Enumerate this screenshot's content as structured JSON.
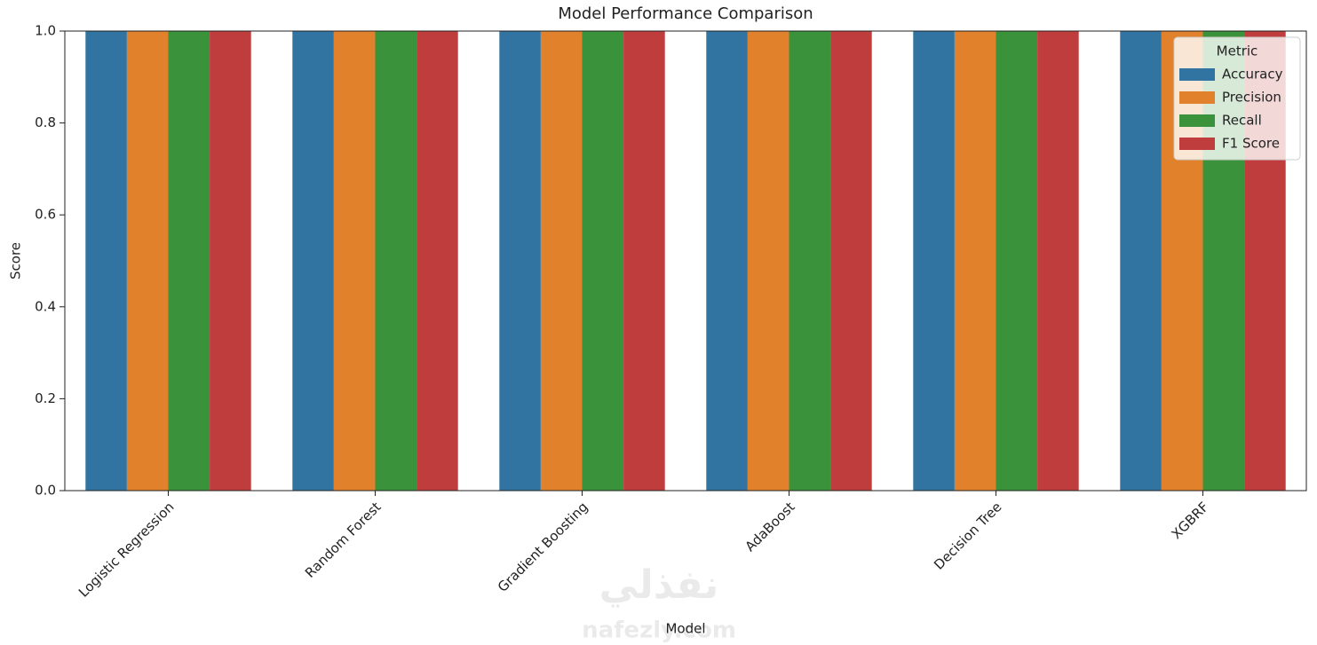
{
  "chart_data": {
    "type": "grouped-bar",
    "title": "Model Performance Comparison",
    "xlabel": "Model",
    "ylabel": "Score",
    "categories": [
      "Logistic Regression",
      "Random Forest",
      "Gradient Boosting",
      "AdaBoost",
      "Decision Tree",
      "XGBRF"
    ],
    "series": [
      {
        "name": "Accuracy",
        "color": "#3274a1",
        "values": [
          1.0,
          1.0,
          1.0,
          1.0,
          1.0,
          1.0
        ]
      },
      {
        "name": "Precision",
        "color": "#e1812c",
        "values": [
          1.0,
          1.0,
          1.0,
          1.0,
          1.0,
          1.0
        ]
      },
      {
        "name": "Recall",
        "color": "#3a923a",
        "values": [
          1.0,
          1.0,
          1.0,
          1.0,
          1.0,
          1.0
        ]
      },
      {
        "name": "F1 Score",
        "color": "#c03d3e",
        "values": [
          1.0,
          1.0,
          1.0,
          1.0,
          1.0,
          1.0
        ]
      }
    ],
    "ylim": [
      0,
      1
    ],
    "yticks": [
      {
        "value": 0,
        "label": "0.0"
      },
      {
        "value": 0.2,
        "label": "0.2"
      },
      {
        "value": 0.4,
        "label": "0.4"
      },
      {
        "value": 0.6,
        "label": "0.6"
      },
      {
        "value": 0.8,
        "label": "0.8"
      },
      {
        "value": 1,
        "label": "1.0"
      }
    ],
    "grid": false,
    "legend_title": "Metric",
    "legend_position": "upper-right",
    "watermark": [
      "نفذلي",
      "nafezly.com"
    ]
  }
}
